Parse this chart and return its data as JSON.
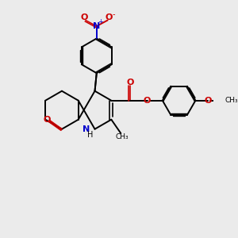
{
  "bg_color": "#ebebeb",
  "bond_color": "#000000",
  "N_color": "#0000cc",
  "O_color": "#cc0000",
  "text_color": "#000000",
  "figsize": [
    3.0,
    3.0
  ],
  "dpi": 100,
  "xlim": [
    0,
    10
  ],
  "ylim": [
    0,
    10
  ]
}
